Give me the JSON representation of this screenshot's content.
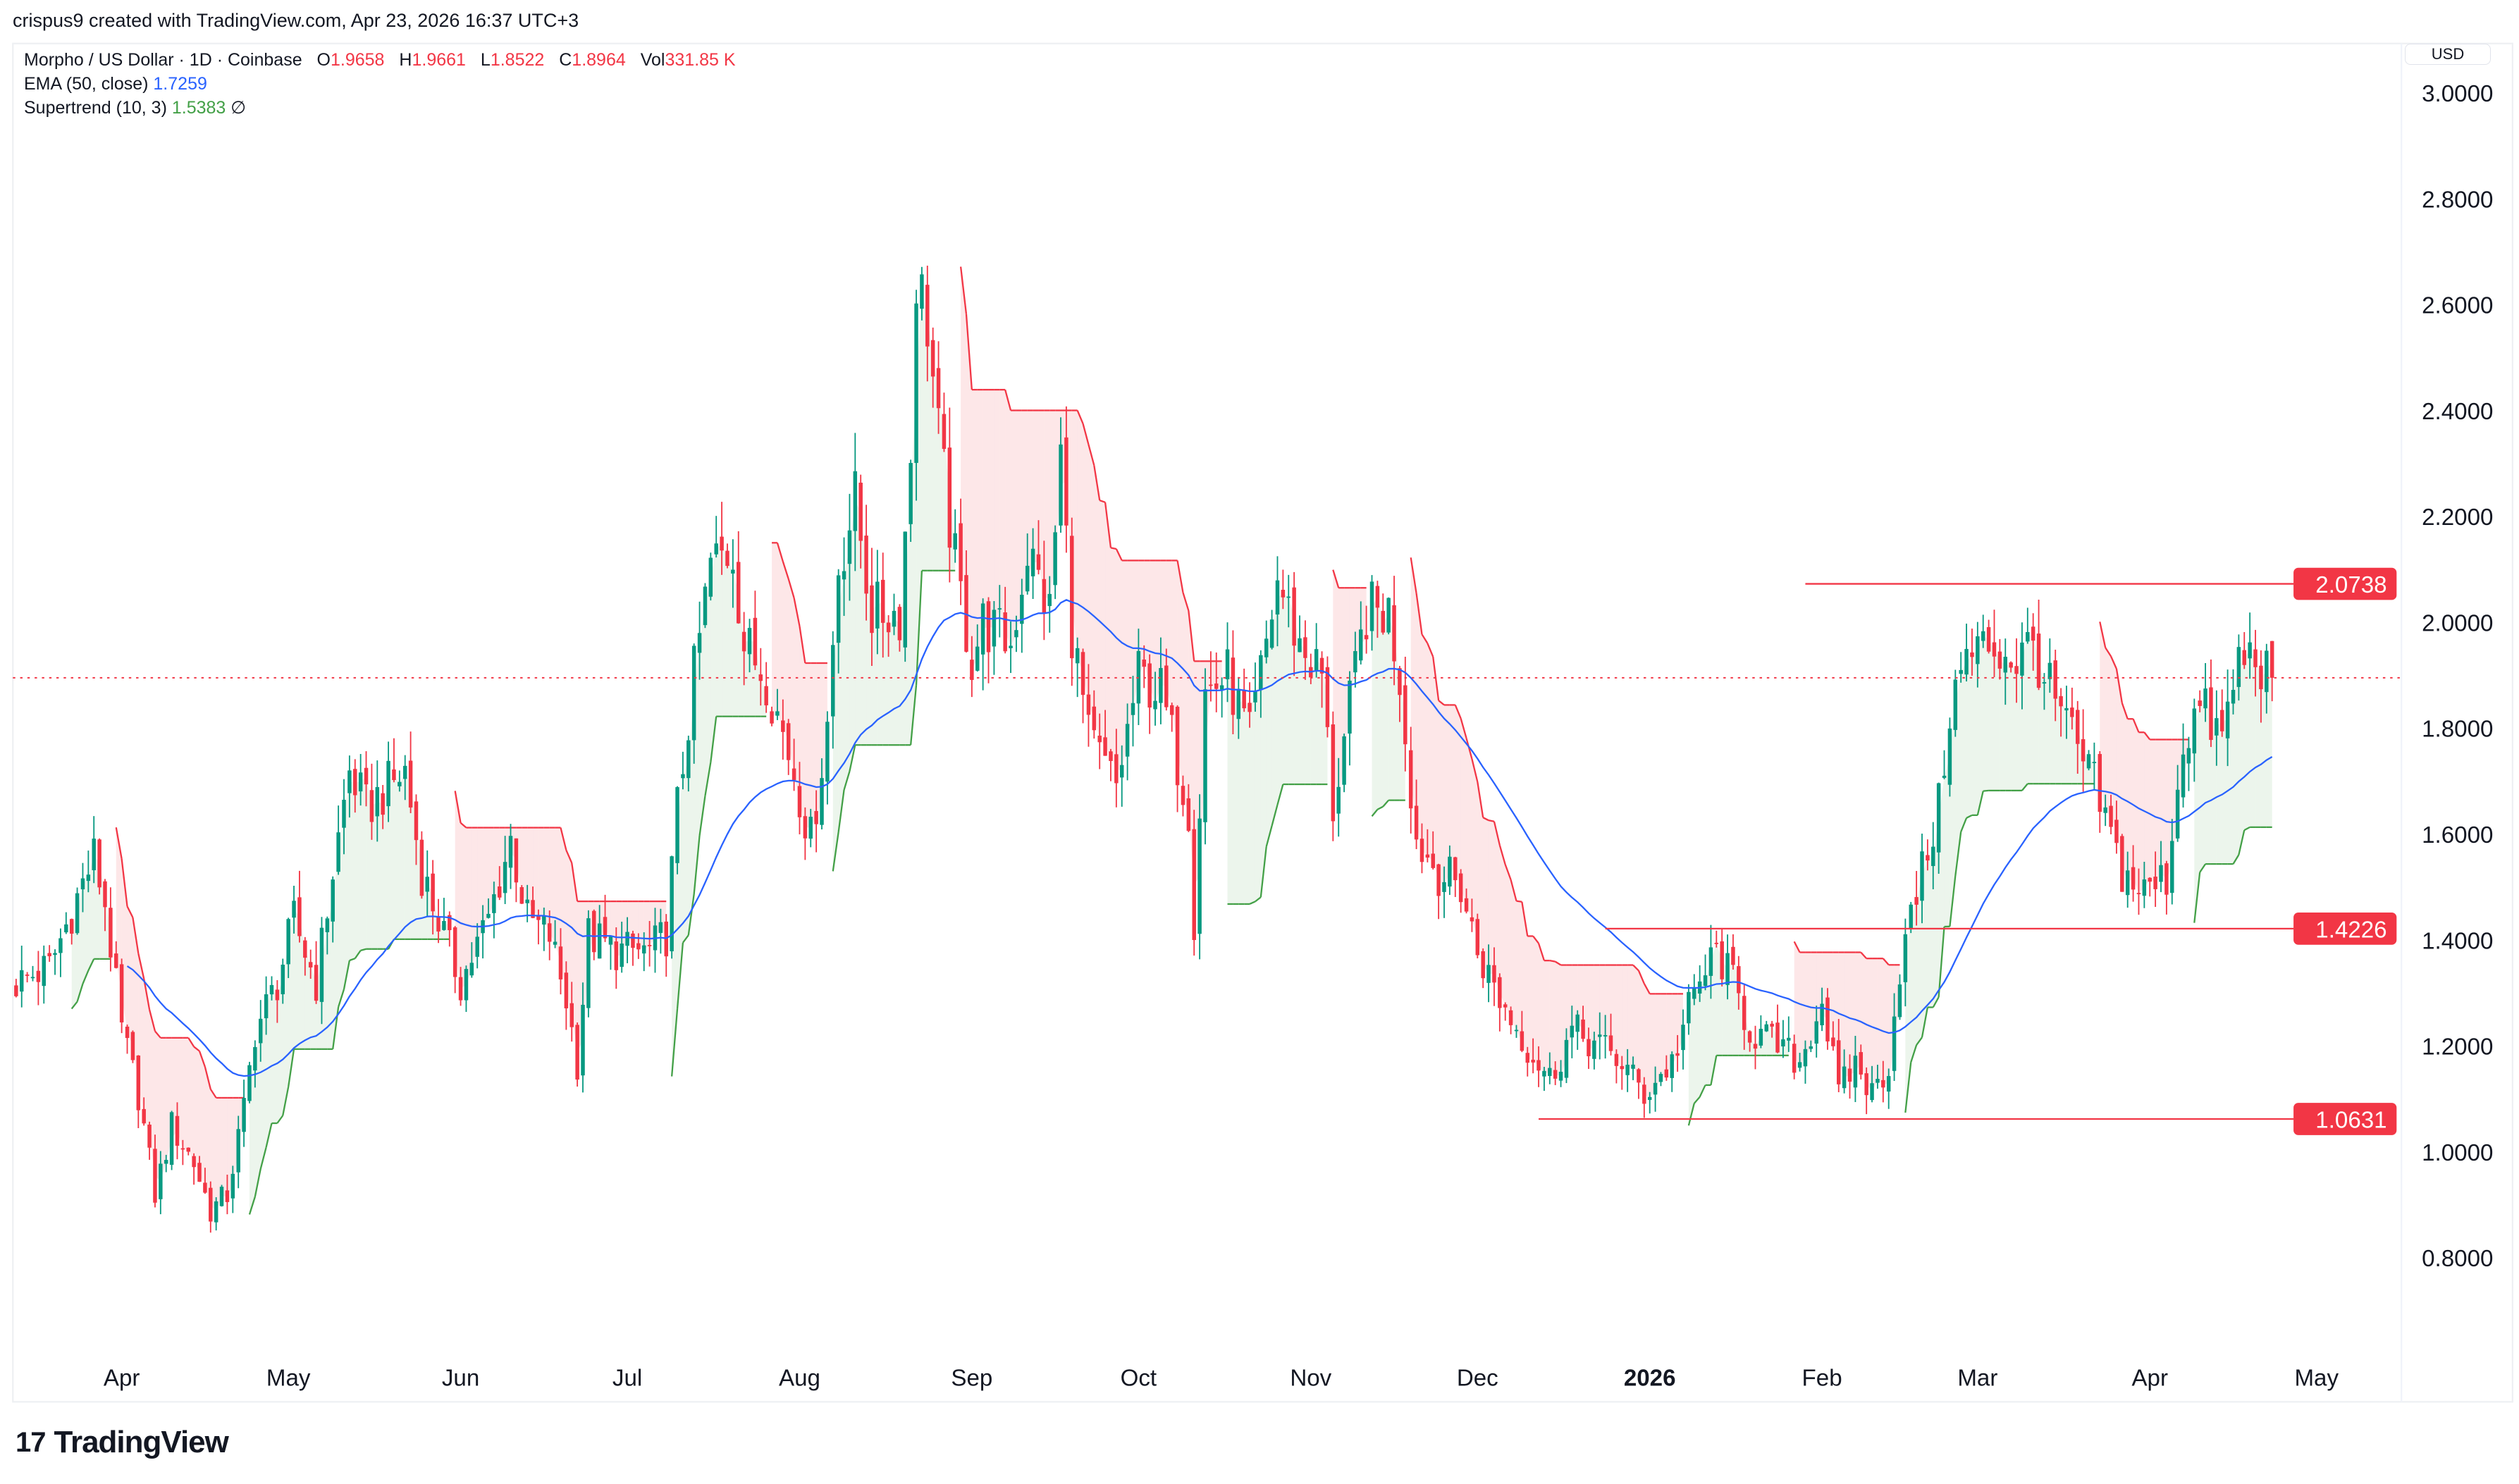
{
  "credit": "crispus9 created with TradingView.com, Apr 23, 2026 16:37 UTC+3",
  "legend": {
    "symbol": "Morpho / US Dollar · 1D · Coinbase",
    "o_label": "O",
    "o": "1.9658",
    "h_label": "H",
    "h": "1.9661",
    "l_label": "L",
    "l": "1.8522",
    "c_label": "C",
    "c": "1.8964",
    "vol_label": "Vol",
    "vol": "331.85 K",
    "ema_label": "EMA (50, close)",
    "ema_value": "1.7259",
    "st_label": "Supertrend (10, 3)",
    "st_value": "1.5383",
    "st_icon": "∅"
  },
  "currency": "USD",
  "logo": {
    "mark": "17",
    "text": "TradingView"
  },
  "colors": {
    "up": "#089981",
    "down": "#f23645",
    "ema": "#2962ff",
    "st_up": "#43a047",
    "st_down": "#f23645"
  },
  "chart_data": {
    "type": "candlestick",
    "title": "Morpho / US Dollar · 1D · Coinbase",
    "ylim": [
      0.7,
      3.05
    ],
    "y_ticks": [
      "3.0000",
      "2.8000",
      "2.6000",
      "2.4000",
      "2.2000",
      "2.0000",
      "1.8000",
      "1.6000",
      "1.4000",
      "1.2000",
      "1.0000",
      "0.8000"
    ],
    "y_tick_values": [
      3.0,
      2.8,
      2.6,
      2.4,
      2.2,
      2.0,
      1.8,
      1.6,
      1.4,
      1.2,
      1.0,
      0.8
    ],
    "x_ticks": [
      {
        "label": "Apr",
        "day": 19
      },
      {
        "label": "May",
        "day": 49
      },
      {
        "label": "Jun",
        "day": 80
      },
      {
        "label": "Jul",
        "day": 110
      },
      {
        "label": "Aug",
        "day": 141
      },
      {
        "label": "Sep",
        "day": 172
      },
      {
        "label": "Oct",
        "day": 202
      },
      {
        "label": "Nov",
        "day": 233
      },
      {
        "label": "Dec",
        "day": 263
      },
      {
        "label": "2026",
        "day": 294,
        "bold": true
      },
      {
        "label": "Feb",
        "day": 325
      },
      {
        "label": "Mar",
        "day": 353
      },
      {
        "label": "Apr",
        "day": 384
      },
      {
        "label": "May",
        "day": 414
      }
    ],
    "close_anchors": [
      [
        0,
        1.32
      ],
      [
        6,
        1.35
      ],
      [
        14,
        1.56
      ],
      [
        16,
        1.47
      ],
      [
        19,
        1.23
      ],
      [
        22,
        1.11
      ],
      [
        25,
        0.92
      ],
      [
        28,
        1.05
      ],
      [
        32,
        0.98
      ],
      [
        35,
        0.89
      ],
      [
        38,
        0.92
      ],
      [
        41,
        1.08
      ],
      [
        43,
        1.23
      ],
      [
        47,
        1.32
      ],
      [
        50,
        1.44
      ],
      [
        54,
        1.32
      ],
      [
        57,
        1.53
      ],
      [
        60,
        1.72
      ],
      [
        63,
        1.65
      ],
      [
        67,
        1.69
      ],
      [
        70,
        1.72
      ],
      [
        73,
        1.53
      ],
      [
        77,
        1.41
      ],
      [
        80,
        1.32
      ],
      [
        85,
        1.44
      ],
      [
        89,
        1.59
      ],
      [
        92,
        1.44
      ],
      [
        96,
        1.41
      ],
      [
        99,
        1.29
      ],
      [
        101,
        1.17
      ],
      [
        103,
        1.41
      ],
      [
        108,
        1.38
      ],
      [
        114,
        1.38
      ],
      [
        117,
        1.41
      ],
      [
        119,
        1.65
      ],
      [
        122,
        1.9
      ],
      [
        125,
        2.11
      ],
      [
        129,
        2.14
      ],
      [
        131,
        1.96
      ],
      [
        135,
        1.9
      ],
      [
        140,
        1.72
      ],
      [
        143,
        1.59
      ],
      [
        146,
        1.81
      ],
      [
        148,
        2.11
      ],
      [
        151,
        2.23
      ],
      [
        154,
        2.02
      ],
      [
        159,
        2.02
      ],
      [
        161,
        2.32
      ],
      [
        162,
        2.66
      ],
      [
        164,
        2.57
      ],
      [
        166,
        2.35
      ],
      [
        169,
        2.11
      ],
      [
        172,
        1.93
      ],
      [
        174,
        2.0
      ],
      [
        179,
        1.96
      ],
      [
        182,
        2.14
      ],
      [
        186,
        2.02
      ],
      [
        188,
        2.32
      ],
      [
        190,
        1.99
      ],
      [
        193,
        1.78
      ],
      [
        198,
        1.69
      ],
      [
        202,
        1.9
      ],
      [
        206,
        1.87
      ],
      [
        211,
        1.65
      ],
      [
        212,
        1.44
      ],
      [
        214,
        1.87
      ],
      [
        218,
        1.9
      ],
      [
        222,
        1.78
      ],
      [
        227,
        2.08
      ],
      [
        231,
        1.96
      ],
      [
        235,
        1.9
      ],
      [
        237,
        1.65
      ],
      [
        240,
        1.84
      ],
      [
        243,
        2.02
      ],
      [
        247,
        2.02
      ],
      [
        249,
        1.9
      ],
      [
        252,
        1.59
      ],
      [
        256,
        1.53
      ],
      [
        260,
        1.5
      ],
      [
        263,
        1.38
      ],
      [
        267,
        1.29
      ],
      [
        272,
        1.2
      ],
      [
        276,
        1.14
      ],
      [
        280,
        1.23
      ],
      [
        285,
        1.2
      ],
      [
        289,
        1.17
      ],
      [
        293,
        1.11
      ],
      [
        298,
        1.17
      ],
      [
        301,
        1.27
      ],
      [
        303,
        1.32
      ],
      [
        306,
        1.38
      ],
      [
        309,
        1.32
      ],
      [
        312,
        1.23
      ],
      [
        317,
        1.2
      ],
      [
        321,
        1.17
      ],
      [
        325,
        1.29
      ],
      [
        328,
        1.11
      ],
      [
        331,
        1.17
      ],
      [
        334,
        1.11
      ],
      [
        337,
        1.17
      ],
      [
        339,
        1.35
      ],
      [
        343,
        1.53
      ],
      [
        346,
        1.65
      ],
      [
        348,
        1.84
      ],
      [
        351,
        1.93
      ],
      [
        355,
        1.96
      ],
      [
        360,
        1.93
      ],
      [
        363,
        1.96
      ],
      [
        366,
        1.87
      ],
      [
        370,
        1.78
      ],
      [
        374,
        1.69
      ],
      [
        379,
        1.53
      ],
      [
        383,
        1.49
      ],
      [
        387,
        1.52
      ],
      [
        390,
        1.78
      ],
      [
        393,
        1.84
      ],
      [
        397,
        1.78
      ],
      [
        400,
        1.93
      ],
      [
        403,
        1.94
      ],
      [
        406,
        1.8964
      ]
    ],
    "last_candle": {
      "open": 1.9658,
      "high": 1.9661,
      "low": 1.8522,
      "close": 1.8964
    },
    "current_price": 1.8964,
    "horizontal_levels": [
      {
        "label": "2.0738",
        "value": 2.0738,
        "from_day": 322
      },
      {
        "label": "1.4226",
        "value": 1.4226,
        "from_day": 286
      },
      {
        "label": "1.0631",
        "value": 1.0631,
        "from_day": 274
      }
    ],
    "indicators": [
      "EMA (50, close)",
      "Supertrend (10, 3)"
    ]
  }
}
